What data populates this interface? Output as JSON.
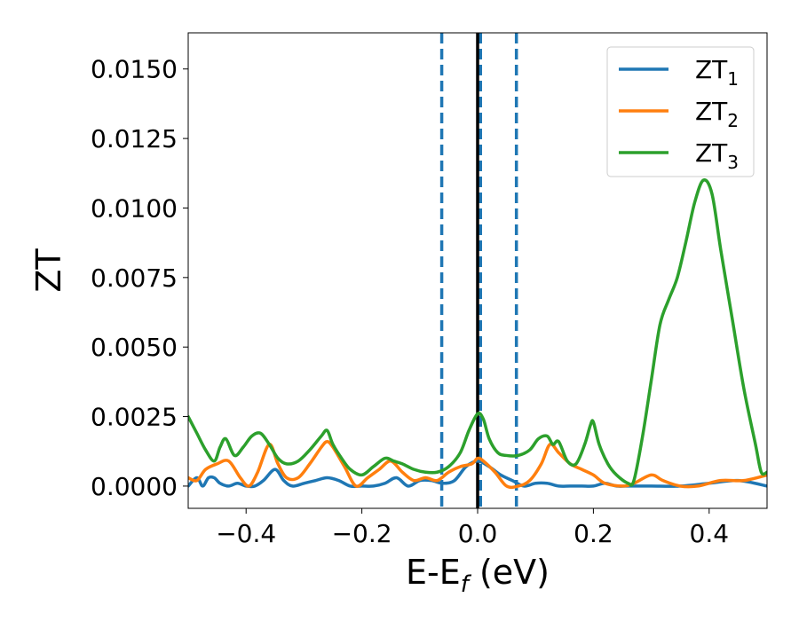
{
  "chart_data": {
    "type": "line",
    "xlabel": {
      "main": "E-E",
      "sub": "f",
      "tail": " (eV)"
    },
    "ylabel": "ZT",
    "xlim": [
      -0.5,
      0.5
    ],
    "ylim": [
      -0.0008,
      0.0163
    ],
    "xticks": [
      -0.4,
      -0.2,
      0.0,
      0.2,
      0.4
    ],
    "xtick_labels": [
      "−0.4",
      "−0.2",
      "0.0",
      "0.2",
      "0.4"
    ],
    "yticks": [
      0.0,
      0.0025,
      0.005,
      0.0075,
      0.01,
      0.0125,
      0.015
    ],
    "ytick_labels": [
      "0.0000",
      "0.0025",
      "0.0050",
      "0.0075",
      "0.0100",
      "0.0125",
      "0.0150"
    ],
    "grid": false,
    "legend_position": "top-right",
    "vlines": [
      {
        "x": -0.062,
        "style": "dashed",
        "color": "#1f77b4"
      },
      {
        "x": 0.005,
        "style": "dashed",
        "color": "#1f77b4"
      },
      {
        "x": 0.067,
        "style": "dashed",
        "color": "#1f77b4"
      },
      {
        "x": 0.0,
        "style": "solid",
        "color": "#000000"
      }
    ],
    "series": [
      {
        "name": "ZT",
        "sub": "1",
        "color": "#1f77b4",
        "x": [
          -0.5,
          -0.485,
          -0.475,
          -0.465,
          -0.455,
          -0.445,
          -0.43,
          -0.415,
          -0.4,
          -0.385,
          -0.37,
          -0.35,
          -0.335,
          -0.32,
          -0.3,
          -0.28,
          -0.26,
          -0.24,
          -0.22,
          -0.2,
          -0.18,
          -0.16,
          -0.14,
          -0.12,
          -0.1,
          -0.08,
          -0.06,
          -0.04,
          -0.02,
          0.0,
          0.02,
          0.04,
          0.06,
          0.08,
          0.1,
          0.12,
          0.14,
          0.16,
          0.18,
          0.2,
          0.22,
          0.24,
          0.26,
          0.3,
          0.35,
          0.4,
          0.45,
          0.5
        ],
        "y": [
          0.0,
          0.0003,
          0.0,
          0.0003,
          0.0003,
          0.0001,
          0.0,
          0.0001,
          0.0,
          0.0,
          0.0002,
          0.0006,
          0.0002,
          0.0,
          0.0001,
          0.0002,
          0.0003,
          0.0002,
          0.0,
          0.0,
          0.0,
          0.0001,
          0.0003,
          0.0,
          0.0002,
          0.0002,
          0.0001,
          0.0002,
          0.0007,
          0.0009,
          0.0007,
          0.0004,
          0.0002,
          0.0,
          0.0001,
          0.0001,
          0.0,
          0.0,
          0.0,
          0.0,
          0.0001,
          0.0,
          0.0,
          0.0,
          0.0,
          0.0001,
          0.0002,
          0.0
        ]
      },
      {
        "name": "ZT",
        "sub": "2",
        "color": "#ff7f0e",
        "x": [
          -0.5,
          -0.485,
          -0.47,
          -0.45,
          -0.43,
          -0.41,
          -0.395,
          -0.38,
          -0.36,
          -0.345,
          -0.33,
          -0.31,
          -0.29,
          -0.27,
          -0.26,
          -0.25,
          -0.23,
          -0.21,
          -0.19,
          -0.17,
          -0.15,
          -0.13,
          -0.11,
          -0.09,
          -0.07,
          -0.05,
          -0.03,
          -0.01,
          0.0,
          0.01,
          0.03,
          0.05,
          0.07,
          0.09,
          0.11,
          0.125,
          0.14,
          0.16,
          0.18,
          0.2,
          0.22,
          0.25,
          0.27,
          0.3,
          0.32,
          0.35,
          0.38,
          0.42,
          0.46,
          0.5
        ],
        "y": [
          0.0003,
          0.0002,
          0.0006,
          0.0008,
          0.0009,
          0.0003,
          0.0,
          0.0005,
          0.0015,
          0.0008,
          0.0003,
          0.0003,
          0.0008,
          0.0014,
          0.0016,
          0.0014,
          0.0007,
          0.0,
          0.0003,
          0.0006,
          0.0009,
          0.0005,
          0.0002,
          0.0003,
          0.0002,
          0.0005,
          0.0007,
          0.0008,
          0.001,
          0.0009,
          0.0005,
          0.0,
          0.0,
          0.0002,
          0.0008,
          0.0015,
          0.0012,
          0.0008,
          0.0006,
          0.0004,
          0.0001,
          0.0,
          0.0001,
          0.0004,
          0.0002,
          0.0,
          0.0,
          0.0002,
          0.0002,
          0.0004
        ]
      },
      {
        "name": "ZT",
        "sub": "3",
        "color": "#2ca02c",
        "x": [
          -0.5,
          -0.485,
          -0.47,
          -0.455,
          -0.445,
          -0.435,
          -0.42,
          -0.405,
          -0.39,
          -0.375,
          -0.36,
          -0.345,
          -0.33,
          -0.31,
          -0.29,
          -0.27,
          -0.26,
          -0.25,
          -0.235,
          -0.22,
          -0.2,
          -0.18,
          -0.16,
          -0.145,
          -0.13,
          -0.11,
          -0.09,
          -0.07,
          -0.05,
          -0.03,
          -0.015,
          0.0,
          0.01,
          0.02,
          0.035,
          0.05,
          0.07,
          0.09,
          0.105,
          0.12,
          0.13,
          0.14,
          0.155,
          0.17,
          0.185,
          0.195,
          0.2,
          0.21,
          0.225,
          0.24,
          0.26,
          0.27,
          0.285,
          0.3,
          0.315,
          0.33,
          0.345,
          0.36,
          0.375,
          0.39,
          0.405,
          0.42,
          0.44,
          0.46,
          0.48,
          0.49,
          0.5
        ],
        "y": [
          0.0025,
          0.0019,
          0.0013,
          0.0009,
          0.0014,
          0.0017,
          0.0011,
          0.0014,
          0.0018,
          0.0019,
          0.0015,
          0.001,
          0.0008,
          0.0009,
          0.0013,
          0.0018,
          0.002,
          0.0015,
          0.001,
          0.0006,
          0.0004,
          0.0007,
          0.001,
          0.0009,
          0.0008,
          0.0006,
          0.0005,
          0.0005,
          0.0007,
          0.0012,
          0.002,
          0.0026,
          0.0024,
          0.0017,
          0.0012,
          0.0011,
          0.0011,
          0.0013,
          0.0017,
          0.0018,
          0.0015,
          0.0016,
          0.0009,
          0.0008,
          0.0015,
          0.0022,
          0.0023,
          0.0015,
          0.0008,
          0.0004,
          0.0001,
          0.0002,
          0.0018,
          0.0038,
          0.0058,
          0.0067,
          0.0075,
          0.0088,
          0.0102,
          0.011,
          0.0105,
          0.0085,
          0.006,
          0.0035,
          0.0015,
          0.0005,
          0.0005
        ]
      }
    ]
  }
}
